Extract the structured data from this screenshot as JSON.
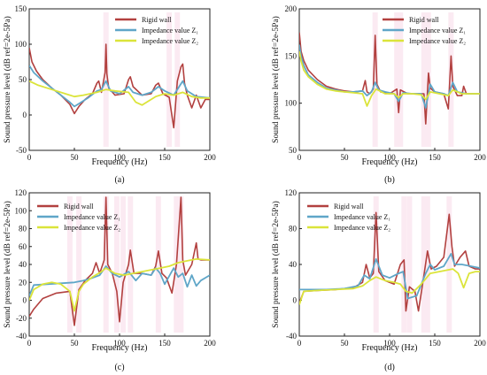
{
  "figure": {
    "series_names": [
      "Rigid wall",
      "Impedance value Z₁",
      "Impedance value Z₂"
    ],
    "series_colors": {
      "rigid": "#b2403f",
      "z1": "#5fa6c8",
      "z2": "#dbe43a"
    },
    "band_color": "#f4c6dc"
  },
  "chart_data": [
    {
      "panel": "a",
      "type": "line",
      "caption": "(a)",
      "xlabel": "Frequency (Hz)",
      "ylabel": "Sound pressure level (dB ref=2e-5Pa)",
      "xlim": [
        0,
        200
      ],
      "ylim": [
        -50,
        150
      ],
      "xticks": [
        0,
        50,
        100,
        150,
        200
      ],
      "yticks": [
        -50,
        0,
        50,
        100,
        150
      ],
      "legend": "top-right",
      "series": [
        {
          "key": "rigid",
          "name": "Rigid wall",
          "x": [
            0,
            3,
            8,
            15,
            25,
            35,
            45,
            50,
            55,
            62,
            70,
            75,
            77,
            80,
            84,
            85,
            86,
            88,
            95,
            105,
            110,
            112,
            115,
            125,
            135,
            140,
            143,
            148,
            155,
            160,
            164,
            168,
            170,
            172,
            175,
            180,
            185,
            190,
            195,
            200
          ],
          "y": [
            95,
            75,
            62,
            50,
            38,
            28,
            15,
            2,
            12,
            22,
            30,
            45,
            48,
            32,
            60,
            100,
            58,
            38,
            28,
            30,
            50,
            54,
            40,
            28,
            30,
            42,
            45,
            30,
            25,
            -18,
            48,
            68,
            72,
            45,
            28,
            10,
            28,
            10,
            22,
            22
          ]
        },
        {
          "key": "z1",
          "name": "Impedance value Z₁",
          "x": [
            0,
            5,
            15,
            25,
            35,
            45,
            50,
            55,
            65,
            75,
            80,
            85,
            90,
            100,
            110,
            115,
            125,
            135,
            143,
            150,
            160,
            165,
            170,
            175,
            185,
            200
          ],
          "y": [
            70,
            60,
            48,
            38,
            28,
            18,
            12,
            16,
            24,
            34,
            36,
            48,
            34,
            30,
            40,
            32,
            28,
            32,
            40,
            34,
            28,
            38,
            48,
            34,
            26,
            24
          ]
        },
        {
          "key": "z2",
          "name": "Impedance value Z₂",
          "x": [
            0,
            10,
            25,
            40,
            50,
            60,
            75,
            85,
            95,
            110,
            118,
            125,
            140,
            150,
            160,
            170,
            180,
            190,
            200
          ],
          "y": [
            48,
            42,
            36,
            30,
            26,
            28,
            32,
            36,
            34,
            32,
            18,
            14,
            26,
            30,
            28,
            32,
            26,
            24,
            24
          ]
        }
      ]
    },
    {
      "panel": "b",
      "type": "line",
      "caption": "(b)",
      "xlabel": "Frequency (Hz)",
      "ylabel": "Sound pressure level (dB ref=2e-5Pa)",
      "xlim": [
        0,
        200
      ],
      "ylim": [
        50,
        200
      ],
      "xticks": [
        0,
        50,
        100,
        150,
        200
      ],
      "yticks": [
        50,
        100,
        150,
        200
      ],
      "legend": "top-right",
      "series": [
        {
          "key": "rigid",
          "name": "Rigid wall",
          "x": [
            0,
            2,
            5,
            10,
            20,
            30,
            40,
            50,
            60,
            70,
            73,
            75,
            78,
            82,
            84,
            86,
            90,
            100,
            108,
            110,
            112,
            120,
            130,
            138,
            140,
            143,
            145,
            150,
            160,
            165,
            168,
            170,
            175,
            180,
            182,
            185,
            190,
            200
          ],
          "y": [
            175,
            155,
            145,
            135,
            125,
            118,
            115,
            113,
            112,
            113,
            124,
            112,
            110,
            115,
            172,
            120,
            112,
            110,
            115,
            90,
            114,
            110,
            110,
            110,
            78,
            132,
            116,
            112,
            110,
            94,
            150,
            118,
            108,
            108,
            118,
            110,
            110,
            110
          ]
        },
        {
          "key": "z1",
          "name": "Impedance value Z₁",
          "x": [
            0,
            2,
            5,
            10,
            20,
            30,
            40,
            50,
            60,
            70,
            75,
            80,
            84,
            88,
            95,
            105,
            110,
            115,
            125,
            135,
            140,
            145,
            150,
            160,
            165,
            170,
            175,
            185,
            200
          ],
          "y": [
            162,
            150,
            140,
            130,
            122,
            116,
            114,
            112,
            112,
            113,
            108,
            112,
            122,
            114,
            112,
            110,
            102,
            111,
            110,
            110,
            95,
            120,
            112,
            110,
            108,
            122,
            112,
            110,
            110
          ]
        },
        {
          "key": "z2",
          "name": "Impedance value Z₂",
          "x": [
            0,
            2,
            5,
            10,
            20,
            30,
            40,
            50,
            60,
            70,
            75,
            80,
            85,
            95,
            105,
            110,
            115,
            125,
            135,
            140,
            145,
            155,
            165,
            170,
            180,
            200
          ],
          "y": [
            155,
            145,
            135,
            128,
            120,
            115,
            113,
            112,
            111,
            110,
            97,
            108,
            115,
            110,
            110,
            106,
            110,
            110,
            109,
            104,
            112,
            110,
            108,
            114,
            110,
            110
          ]
        }
      ]
    },
    {
      "panel": "c",
      "type": "line",
      "caption": "(c)",
      "xlabel": "Frequency (Hz)",
      "ylabel": "Sound pressure level (dB ref=2e-5Pa)",
      "xlim": [
        0,
        200
      ],
      "ylim": [
        -40,
        120
      ],
      "xticks": [
        0,
        50,
        100,
        150,
        200
      ],
      "yticks": [
        -40,
        -20,
        0,
        20,
        40,
        60,
        80,
        100,
        120
      ],
      "legend": "top-left",
      "series": [
        {
          "key": "rigid",
          "name": "Rigid wall",
          "x": [
            0,
            5,
            15,
            30,
            45,
            50,
            55,
            62,
            70,
            74,
            78,
            83,
            85,
            87,
            92,
            97,
            100,
            104,
            110,
            112,
            116,
            125,
            135,
            140,
            143,
            147,
            152,
            158,
            163,
            168,
            170,
            173,
            180,
            185,
            187,
            190,
            200
          ],
          "y": [
            -18,
            -10,
            2,
            8,
            10,
            -28,
            12,
            22,
            30,
            42,
            30,
            45,
            115,
            40,
            30,
            10,
            -24,
            20,
            40,
            56,
            30,
            30,
            28,
            38,
            55,
            30,
            25,
            8,
            40,
            115,
            45,
            28,
            40,
            64,
            46,
            45,
            45
          ]
        },
        {
          "key": "z1",
          "name": "Impedance value Z₁",
          "x": [
            0,
            5,
            20,
            35,
            50,
            60,
            70,
            78,
            85,
            92,
            100,
            110,
            118,
            125,
            135,
            140,
            145,
            150,
            160,
            165,
            170,
            175,
            180,
            185,
            190,
            200
          ],
          "y": [
            5,
            17,
            18,
            19,
            20,
            22,
            25,
            28,
            38,
            30,
            26,
            32,
            22,
            30,
            28,
            36,
            30,
            18,
            36,
            26,
            30,
            15,
            28,
            16,
            22,
            28
          ]
        },
        {
          "key": "z2",
          "name": "Impedance value Z₂",
          "x": [
            0,
            5,
            15,
            25,
            35,
            45,
            50,
            55,
            60,
            70,
            80,
            85,
            95,
            105,
            115,
            125,
            135,
            145,
            155,
            165,
            175,
            185,
            200
          ],
          "y": [
            0,
            12,
            18,
            20,
            18,
            10,
            -12,
            10,
            18,
            26,
            32,
            36,
            30,
            28,
            30,
            32,
            34,
            36,
            38,
            42,
            44,
            46,
            45
          ]
        }
      ]
    },
    {
      "panel": "d",
      "type": "line",
      "caption": "(d)",
      "xlabel": "Frequency (Hz)",
      "ylabel": "Sound pressure level (dB ref=2e-5Pa)",
      "xlim": [
        0,
        200
      ],
      "ylim": [
        -40,
        120
      ],
      "xticks": [
        0,
        50,
        100,
        150,
        200
      ],
      "yticks": [
        -40,
        0,
        40,
        80,
        120
      ],
      "legend": "top-left",
      "series": [
        {
          "key": "rigid",
          "name": "Rigid wall",
          "x": [
            0,
            5,
            20,
            40,
            60,
            70,
            74,
            78,
            82,
            85,
            88,
            95,
            105,
            112,
            116,
            118,
            122,
            128,
            132,
            138,
            142,
            146,
            152,
            160,
            166,
            169,
            172,
            178,
            184,
            188,
            195,
            200
          ],
          "y": [
            -3,
            10,
            11,
            12,
            14,
            20,
            40,
            25,
            30,
            98,
            32,
            22,
            18,
            40,
            45,
            -12,
            15,
            10,
            -12,
            28,
            55,
            35,
            38,
            48,
            96,
            60,
            38,
            48,
            55,
            38,
            35,
            35
          ]
        },
        {
          "key": "z1",
          "name": "Impedance value Z₁",
          "x": [
            0,
            10,
            30,
            50,
            65,
            72,
            78,
            85,
            92,
            100,
            110,
            115,
            120,
            130,
            140,
            145,
            150,
            160,
            168,
            172,
            180,
            190,
            200
          ],
          "y": [
            12,
            12,
            12,
            13,
            16,
            28,
            24,
            46,
            28,
            25,
            30,
            32,
            2,
            5,
            30,
            40,
            34,
            38,
            52,
            40,
            40,
            38,
            36
          ]
        },
        {
          "key": "z2",
          "name": "Impedance value Z₂",
          "x": [
            0,
            5,
            20,
            40,
            60,
            70,
            78,
            85,
            95,
            105,
            112,
            118,
            125,
            135,
            145,
            155,
            165,
            170,
            176,
            182,
            188,
            195,
            200
          ],
          "y": [
            -5,
            10,
            11,
            12,
            13,
            16,
            22,
            26,
            22,
            20,
            18,
            10,
            8,
            18,
            30,
            32,
            34,
            35,
            30,
            14,
            30,
            32,
            32
          ]
        }
      ]
    }
  ]
}
